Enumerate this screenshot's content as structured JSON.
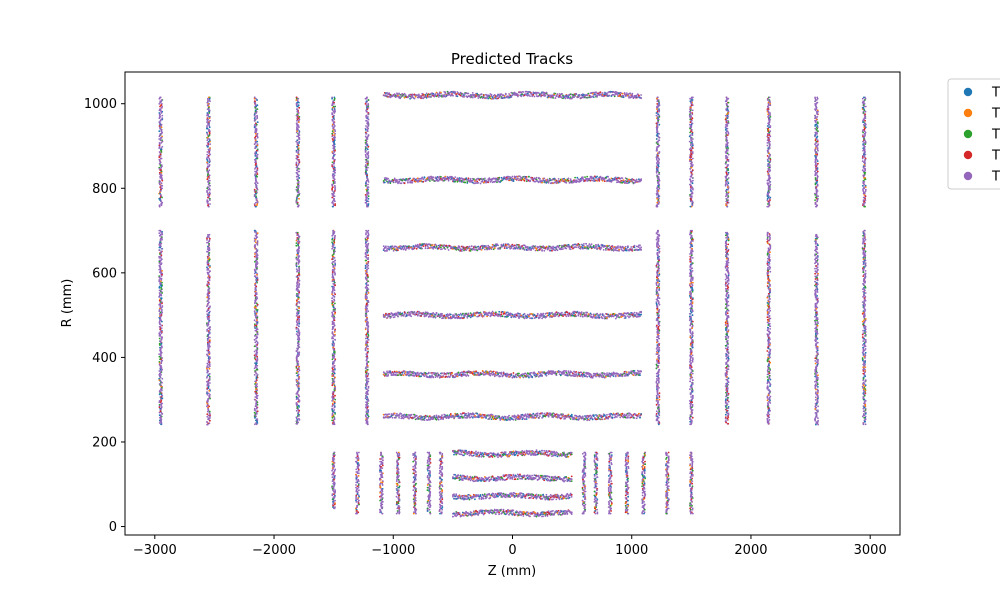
{
  "chart_data": {
    "type": "scatter",
    "title": "Predicted Tracks",
    "xlabel": "Z (mm)",
    "ylabel": "R (mm)",
    "xlim": [
      -3250,
      3250
    ],
    "ylim": [
      -20,
      1075
    ],
    "x_ticks": [
      -3000,
      -2000,
      -1000,
      0,
      1000,
      2000,
      3000
    ],
    "x_tick_labels": [
      "−3000",
      "−2000",
      "−1000",
      "0",
      "1000",
      "2000",
      "3000"
    ],
    "y_ticks": [
      0,
      200,
      400,
      600,
      800,
      1000
    ],
    "y_tick_labels": [
      "0",
      "200",
      "400",
      "600",
      "800",
      "1000"
    ],
    "grid": false,
    "legend_position": "outside-right",
    "series": [
      {
        "name": "T",
        "color": "#1f77b4"
      },
      {
        "name": "T",
        "color": "#ff7f0e"
      },
      {
        "name": "T",
        "color": "#2ca02c"
      },
      {
        "name": "T",
        "color": "#d62728"
      },
      {
        "name": "T",
        "color": "#9467bd"
      }
    ],
    "barrel_layers": [
      {
        "r": 1020,
        "z_min": -1080,
        "z_max": 1080
      },
      {
        "r": 820,
        "z_min": -1080,
        "z_max": 1080
      },
      {
        "r": 660,
        "z_min": -1080,
        "z_max": 1080
      },
      {
        "r": 500,
        "z_min": -1080,
        "z_max": 1080
      },
      {
        "r": 360,
        "z_min": -1080,
        "z_max": 1080
      },
      {
        "r": 260,
        "z_min": -1080,
        "z_max": 1080
      },
      {
        "r": 172,
        "z_min": -500,
        "z_max": 500
      },
      {
        "r": 115,
        "z_min": -500,
        "z_max": 500
      },
      {
        "r": 72,
        "z_min": -500,
        "z_max": 500
      },
      {
        "r": 32,
        "z_min": -500,
        "z_max": 500
      }
    ],
    "endcap_layers": [
      {
        "z": -2950,
        "r_min": 240,
        "r_max": 700
      },
      {
        "z": -2550,
        "r_min": 240,
        "r_max": 690
      },
      {
        "z": -2150,
        "r_min": 240,
        "r_max": 700
      },
      {
        "z": -1800,
        "r_min": 240,
        "r_max": 695
      },
      {
        "z": -1500,
        "r_min": 240,
        "r_max": 700
      },
      {
        "z": -1220,
        "r_min": 240,
        "r_max": 700
      },
      {
        "z": 1220,
        "r_min": 240,
        "r_max": 700
      },
      {
        "z": 1500,
        "r_min": 240,
        "r_max": 700
      },
      {
        "z": 1800,
        "r_min": 240,
        "r_max": 695
      },
      {
        "z": 2150,
        "r_min": 240,
        "r_max": 695
      },
      {
        "z": 2550,
        "r_min": 240,
        "r_max": 690
      },
      {
        "z": 2950,
        "r_min": 240,
        "r_max": 700
      },
      {
        "z": -2950,
        "r_min": 755,
        "r_max": 1015
      },
      {
        "z": -2550,
        "r_min": 755,
        "r_max": 1015
      },
      {
        "z": -2150,
        "r_min": 755,
        "r_max": 1015
      },
      {
        "z": -1800,
        "r_min": 755,
        "r_max": 1015
      },
      {
        "z": -1500,
        "r_min": 755,
        "r_max": 1015
      },
      {
        "z": -1220,
        "r_min": 755,
        "r_max": 1015
      },
      {
        "z": 1220,
        "r_min": 755,
        "r_max": 1015
      },
      {
        "z": 1500,
        "r_min": 755,
        "r_max": 1015
      },
      {
        "z": 1800,
        "r_min": 755,
        "r_max": 1015
      },
      {
        "z": 2150,
        "r_min": 755,
        "r_max": 1015
      },
      {
        "z": 2550,
        "r_min": 755,
        "r_max": 1015
      },
      {
        "z": 2950,
        "r_min": 755,
        "r_max": 1015
      },
      {
        "z": -1500,
        "r_min": 40,
        "r_max": 175
      },
      {
        "z": -1300,
        "r_min": 30,
        "r_max": 175
      },
      {
        "z": -1100,
        "r_min": 30,
        "r_max": 175
      },
      {
        "z": -960,
        "r_min": 30,
        "r_max": 175
      },
      {
        "z": -820,
        "r_min": 30,
        "r_max": 175
      },
      {
        "z": -700,
        "r_min": 30,
        "r_max": 175
      },
      {
        "z": -600,
        "r_min": 30,
        "r_max": 175
      },
      {
        "z": 600,
        "r_min": 30,
        "r_max": 175
      },
      {
        "z": 700,
        "r_min": 30,
        "r_max": 175
      },
      {
        "z": 820,
        "r_min": 30,
        "r_max": 175
      },
      {
        "z": 960,
        "r_min": 30,
        "r_max": 175
      },
      {
        "z": 1100,
        "r_min": 30,
        "r_max": 175
      },
      {
        "z": 1300,
        "r_min": 30,
        "r_max": 175
      },
      {
        "z": 1500,
        "r_min": 30,
        "r_max": 175
      }
    ]
  }
}
